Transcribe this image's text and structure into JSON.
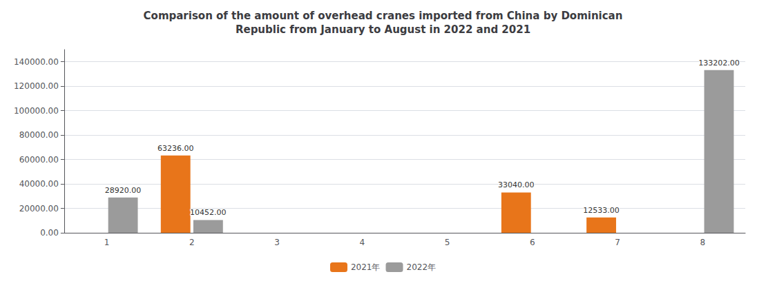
{
  "chart_data": {
    "type": "bar",
    "title": "Comparison of the amount of overhead cranes imported from China by Dominican\nRepublic from January to August in 2022 and 2021",
    "categories": [
      "1",
      "2",
      "3",
      "4",
      "5",
      "6",
      "7",
      "8"
    ],
    "series": [
      {
        "name": "2021年",
        "color": "#E8751A",
        "values": [
          0,
          63236,
          0,
          0,
          0,
          33040,
          12533,
          0
        ],
        "value_labels": [
          null,
          "63236.00",
          null,
          null,
          null,
          "33040.00",
          "12533.00",
          null
        ]
      },
      {
        "name": "2022年",
        "color": "#9B9B9B",
        "values": [
          28920,
          10452,
          0,
          0,
          0,
          0,
          0,
          133202
        ],
        "value_labels": [
          "28920.00",
          "10452.00",
          null,
          null,
          null,
          null,
          null,
          "133202.00"
        ]
      }
    ],
    "ylim": [
      0,
      150000
    ],
    "yticks": [
      {
        "value": 0,
        "label": "0.00"
      },
      {
        "value": 20000,
        "label": "20000.00"
      },
      {
        "value": 40000,
        "label": "40000.00"
      },
      {
        "value": 60000,
        "label": "60000.00"
      },
      {
        "value": 80000,
        "label": "80000.00"
      },
      {
        "value": 100000,
        "label": "100000.00"
      },
      {
        "value": 120000,
        "label": "120000.00"
      },
      {
        "value": 140000,
        "label": "140000.00"
      }
    ],
    "grid": true,
    "legend": "bottom",
    "data_labels": true
  }
}
